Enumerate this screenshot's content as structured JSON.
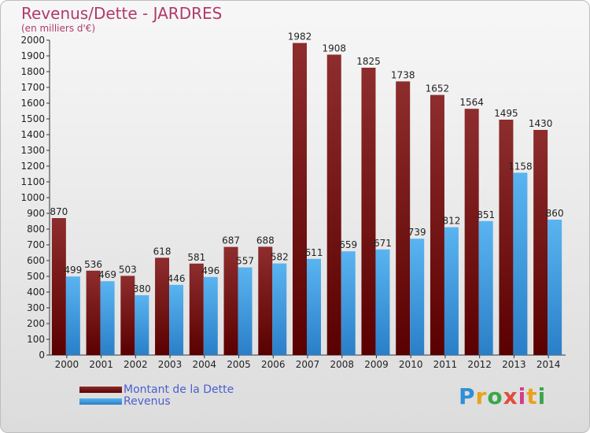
{
  "page": {
    "title": "Revenus/Dette - JARDRES",
    "subtitle": "(en milliers d'€)",
    "logo_letters": [
      "P",
      "r",
      "o",
      "x",
      "i",
      "t",
      "i"
    ],
    "logo_colors": [
      "#2f8fd6",
      "#e8a21c",
      "#3aa64a",
      "#e34b3a",
      "#d63a8a",
      "#e8a21c",
      "#3aa64a"
    ]
  },
  "chart_data": {
    "type": "bar",
    "categories": [
      "2000",
      "2001",
      "2002",
      "2003",
      "2004",
      "2005",
      "2006",
      "2007",
      "2008",
      "2009",
      "2010",
      "2011",
      "2012",
      "2013",
      "2014"
    ],
    "series": [
      {
        "name": "Montant de la Dette",
        "color": "#7a1a1a",
        "values": [
          870,
          536,
          503,
          618,
          581,
          687,
          688,
          1982,
          1908,
          1825,
          1738,
          1652,
          1564,
          1495,
          1430
        ]
      },
      {
        "name": "Revenus",
        "color": "#3a9fe6",
        "values": [
          499,
          469,
          380,
          446,
          496,
          557,
          582,
          611,
          659,
          671,
          739,
          812,
          851,
          1158,
          860
        ]
      }
    ],
    "ylim": [
      0,
      2000
    ],
    "ytick_step": 100,
    "grid": false,
    "legend_position": "bottom-left"
  }
}
